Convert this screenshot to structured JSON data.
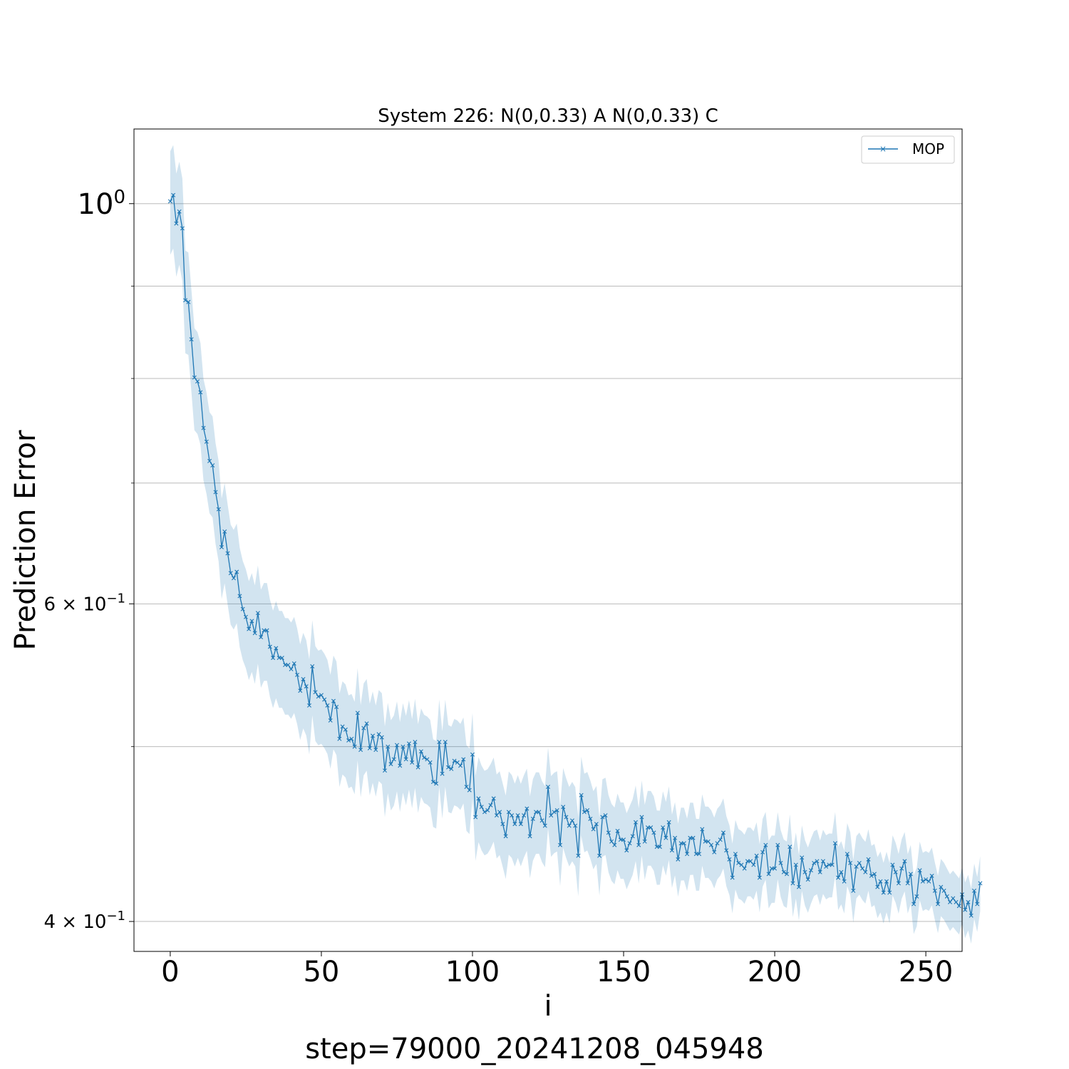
{
  "chart_data": {
    "type": "line",
    "title": "System 226: N(0,0.33) A N(0,0.33) C",
    "xlabel": "i",
    "ylabel": "Prediction Error",
    "footer": "step=79000_20241208_045948",
    "x_scale": "linear",
    "y_scale": "log",
    "xlim": [
      -12,
      262
    ],
    "ylim": [
      0.385,
      1.1
    ],
    "x_ticks": [
      0,
      50,
      100,
      150,
      200,
      250
    ],
    "x_tick_labels": [
      "0",
      "50",
      "100",
      "150",
      "200",
      "250"
    ],
    "y_major_ticks": [
      {
        "value": 1.0,
        "base": "10",
        "exp": "0"
      },
      {
        "value": 0.6,
        "base": "6 × 10",
        "exp": "−1"
      },
      {
        "value": 0.4,
        "base": "4 × 10",
        "exp": "−1"
      }
    ],
    "y_minor_ticks": [
      0.9,
      0.8,
      0.7,
      0.5
    ],
    "grid": {
      "axis": "y",
      "which": "both"
    },
    "legend": {
      "position": "top-right",
      "entries": [
        "MOP"
      ]
    },
    "colors": {
      "line": "#1f77b4",
      "band": "#1f77b4"
    },
    "band_halfwidth": [
      0.066,
      0.035
    ],
    "series": [
      {
        "name": "MOP",
        "marker": "x",
        "x_start": 0,
        "x_step": 1,
        "values": [
          1.003,
          1.011,
          0.975,
          0.99,
          0.969,
          0.884,
          0.882,
          0.841,
          0.801,
          0.797,
          0.786,
          0.751,
          0.738,
          0.72,
          0.716,
          0.692,
          0.677,
          0.645,
          0.658,
          0.64,
          0.624,
          0.62,
          0.625,
          0.606,
          0.596,
          0.59,
          0.581,
          0.587,
          0.578,
          0.593,
          0.575,
          0.58,
          0.58,
          0.568,
          0.56,
          0.567,
          0.56,
          0.56,
          0.555,
          0.555,
          0.552,
          0.556,
          0.548,
          0.537,
          0.545,
          0.54,
          0.527,
          0.554,
          0.536,
          0.533,
          0.534,
          0.531,
          0.527,
          0.517,
          0.53,
          0.526,
          0.505,
          0.513,
          0.511,
          0.504,
          0.505,
          0.5,
          0.522,
          0.498,
          0.512,
          0.515,
          0.499,
          0.507,
          0.498,
          0.508,
          0.506,
          0.485,
          0.5,
          0.489,
          0.492,
          0.501,
          0.488,
          0.5,
          0.492,
          0.502,
          0.49,
          0.503,
          0.487,
          0.497,
          0.493,
          0.492,
          0.49,
          0.478,
          0.477,
          0.503,
          0.483,
          0.503,
          0.487,
          0.486,
          0.491,
          0.49,
          0.488,
          0.492,
          0.475,
          0.473,
          0.495,
          0.457,
          0.468,
          0.463,
          0.46,
          0.461,
          0.464,
          0.468,
          0.458,
          0.46,
          0.453,
          0.446,
          0.46,
          0.458,
          0.453,
          0.458,
          0.453,
          0.458,
          0.462,
          0.446,
          0.456,
          0.46,
          0.46,
          0.455,
          0.452,
          0.475,
          0.458,
          0.46,
          0.461,
          0.441,
          0.463,
          0.457,
          0.452,
          0.455,
          0.452,
          0.435,
          0.47,
          0.46,
          0.461,
          0.456,
          0.45,
          0.453,
          0.435,
          0.457,
          0.458,
          0.448,
          0.443,
          0.441,
          0.449,
          0.444,
          0.444,
          0.438,
          0.442,
          0.446,
          0.454,
          0.441,
          0.457,
          0.443,
          0.451,
          0.451,
          0.448,
          0.44,
          0.44,
          0.451,
          0.445,
          0.454,
          0.438,
          0.445,
          0.433,
          0.442,
          0.442,
          0.436,
          0.445,
          0.445,
          0.436,
          0.436,
          0.45,
          0.443,
          0.443,
          0.441,
          0.437,
          0.442,
          0.444,
          0.448,
          0.438,
          0.433,
          0.423,
          0.436,
          0.431,
          0.43,
          0.428,
          0.432,
          0.432,
          0.43,
          0.435,
          0.423,
          0.437,
          0.441,
          0.425,
          0.428,
          0.428,
          0.441,
          0.431,
          0.426,
          0.425,
          0.44,
          0.42,
          0.43,
          0.418,
          0.434,
          0.426,
          0.422,
          0.427,
          0.431,
          0.432,
          0.426,
          0.432,
          0.429,
          0.43,
          0.43,
          0.442,
          0.423,
          0.426,
          0.421,
          0.436,
          0.431,
          0.416,
          0.429,
          0.431,
          0.428,
          0.426,
          0.433,
          0.424,
          0.425,
          0.418,
          0.421,
          0.415,
          0.421,
          0.415,
          0.43,
          0.426,
          0.42,
          0.428,
          0.432,
          0.42,
          0.425,
          0.409,
          0.413,
          0.427,
          0.421,
          0.422,
          0.421,
          0.424,
          0.416,
          0.409,
          0.418,
          0.416,
          0.413,
          0.41,
          0.412,
          0.41,
          0.408,
          0.414,
          0.406,
          0.41,
          0.403,
          0.416,
          0.409,
          0.42
        ]
      }
    ]
  }
}
